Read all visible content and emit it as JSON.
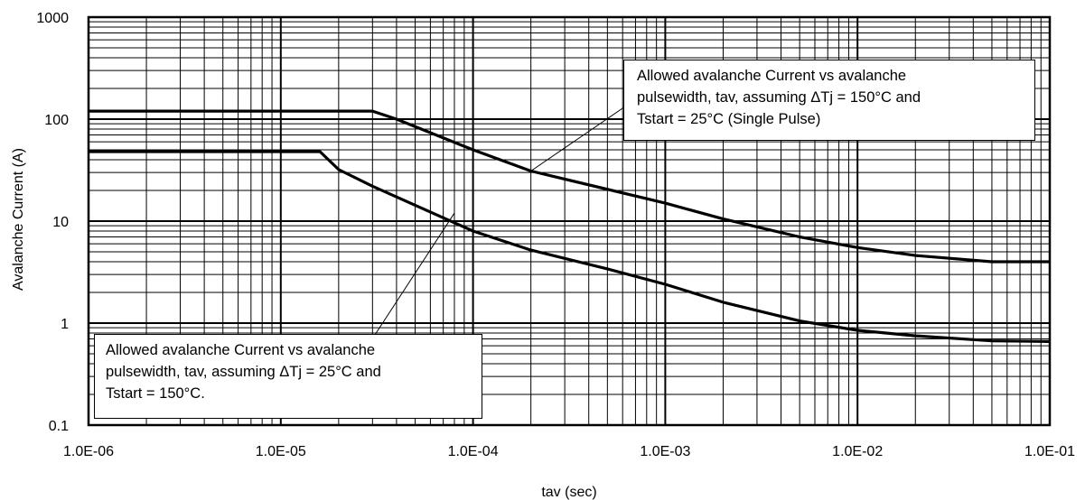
{
  "chart_data": {
    "type": "line",
    "xscale": "log",
    "yscale": "log",
    "xlabel": "tav (sec)",
    "ylabel": "Avalanche Current (A)",
    "xlim": [
      1e-06,
      0.1
    ],
    "ylim": [
      0.1,
      1000
    ],
    "x_tick_labels": [
      "1.0E-06",
      "1.0E-05",
      "1.0E-04",
      "1.0E-03",
      "1.0E-02",
      "1.0E-01"
    ],
    "y_tick_labels": [
      "0.1",
      "1",
      "10",
      "100",
      "1000"
    ],
    "grid": true,
    "series": [
      {
        "values": [
          [
            1e-06,
            120
          ],
          [
            1e-05,
            120
          ],
          [
            3e-05,
            120
          ],
          [
            4e-05,
            100
          ],
          [
            0.0001,
            50
          ],
          [
            0.0002,
            31
          ],
          [
            0.001,
            15
          ],
          [
            0.002,
            10.5
          ],
          [
            0.005,
            7
          ],
          [
            0.01,
            5.5
          ],
          [
            0.02,
            4.6
          ],
          [
            0.05,
            4
          ],
          [
            0.1,
            4
          ]
        ]
      },
      {
        "values": [
          [
            1e-06,
            48
          ],
          [
            1e-05,
            48
          ],
          [
            1.6e-05,
            48
          ],
          [
            2e-05,
            32
          ],
          [
            3e-05,
            22
          ],
          [
            0.0001,
            8
          ],
          [
            0.0002,
            5.2
          ],
          [
            0.0005,
            3.4
          ],
          [
            0.001,
            2.4
          ],
          [
            0.002,
            1.6
          ],
          [
            0.005,
            1.05
          ],
          [
            0.01,
            0.85
          ],
          [
            0.02,
            0.75
          ],
          [
            0.05,
            0.67
          ],
          [
            0.1,
            0.66
          ]
        ]
      }
    ],
    "annotations": [
      {
        "lines": [
          "Allowed avalanche Current vs avalanche",
          "pulsewidth, tav, assuming ΔTj = 150°C and",
          "Tstart = 25°C (Single Pulse)"
        ],
        "points_to": [
          0.0002,
          31
        ]
      },
      {
        "lines": [
          "Allowed avalanche Current vs avalanche",
          "pulsewidth, tav, assuming ΔTj = 25°C and",
          "Tstart = 150°C."
        ],
        "points_to": [
          8e-05,
          12
        ]
      }
    ]
  }
}
